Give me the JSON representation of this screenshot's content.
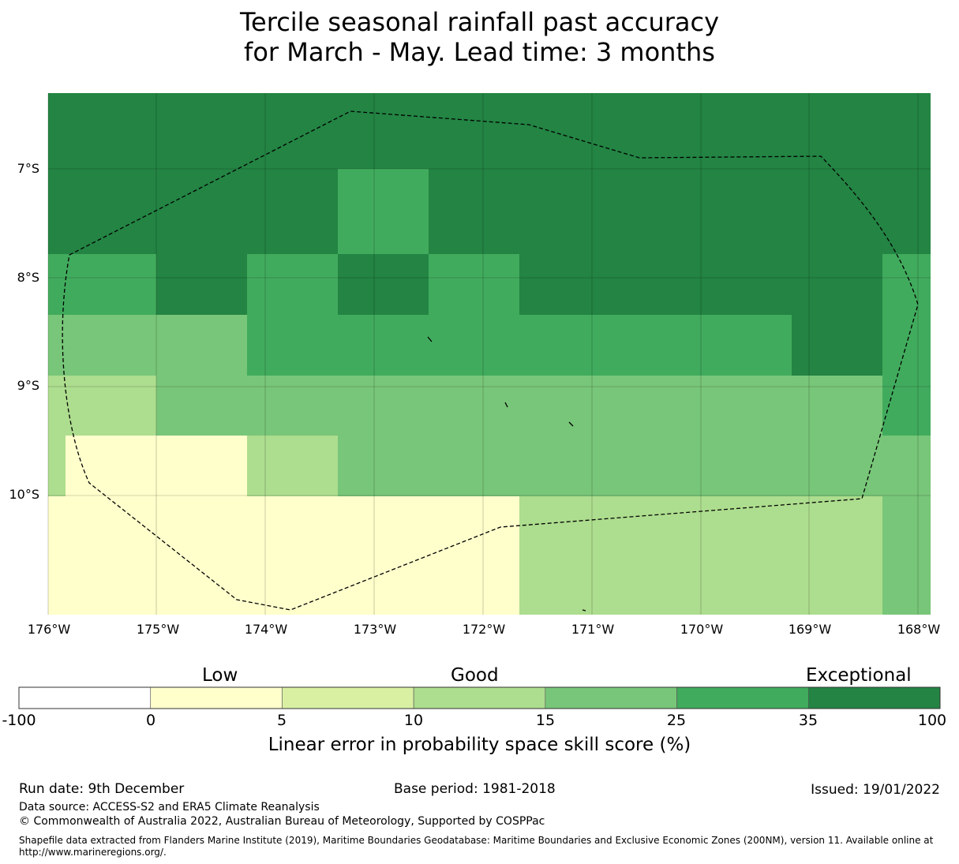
{
  "title": {
    "line1": "Tercile seasonal rainfall past accuracy",
    "line2": "for March - May. Lead time: 3 months"
  },
  "map": {
    "lat_labels": [
      "7°S",
      "8°S",
      "9°S",
      "10°S"
    ],
    "lon_labels": [
      "176°W",
      "175°W",
      "174°W",
      "173°W",
      "172°W",
      "171°W",
      "170°W",
      "169°W",
      "168°W"
    ],
    "grid": {
      "columns": 10,
      "rows": 9,
      "cells": [
        [
          35,
          35,
          35,
          35,
          35,
          35,
          35,
          35,
          35,
          35
        ],
        [
          35,
          35,
          35,
          35,
          35,
          35,
          35,
          35,
          35,
          35
        ],
        [
          35,
          35,
          35,
          25,
          35,
          35,
          35,
          35,
          35,
          35
        ],
        [
          25,
          35,
          25,
          35,
          25,
          35,
          35,
          35,
          35,
          25
        ],
        [
          15,
          15,
          25,
          25,
          25,
          25,
          25,
          25,
          35,
          25
        ],
        [
          10,
          15,
          15,
          15,
          15,
          15,
          15,
          15,
          15,
          25
        ],
        [
          0,
          0,
          10,
          15,
          15,
          15,
          15,
          20,
          15,
          15
        ],
        [
          0,
          0,
          0,
          0,
          0,
          10,
          10,
          10,
          10,
          15
        ],
        [
          0,
          0,
          0,
          0,
          0,
          10,
          10,
          10,
          10,
          15
        ]
      ]
    },
    "boundary_style": "dashed",
    "colors": {
      "below_0": "#ffffff",
      "0_5": "#ffffcc",
      "5_10": "#d9f0a3",
      "10_15": "#addd8e",
      "15_25": "#78c679",
      "25_35": "#41ab5d",
      "35_100": "#238443"
    }
  },
  "colorbar": {
    "category_labels": [
      "Low",
      "Good",
      "Exceptional"
    ],
    "ticks": [
      "-100",
      "0",
      "5",
      "10",
      "15",
      "25",
      "35",
      "100"
    ],
    "colors": [
      "#ffffff",
      "#ffffcc",
      "#d9f0a3",
      "#addd8e",
      "#78c679",
      "#41ab5d",
      "#238443"
    ],
    "title": "Linear error in probability space skill score (%)"
  },
  "footer": {
    "run_date": "Run date: 9th December",
    "base_period": "Base period: 1981-2018",
    "issued": "Issued: 19/01/2022",
    "data_source": "Data source: ACCESS-S2 and ERA5 Climate Reanalysis",
    "copyright": "© Commonwealth of Australia 2022, Australian Bureau of Meteorology, Supported by COSPPac",
    "shapefile": "Shapefile data extracted from Flanders Marine Institute (2019), Maritime Boundaries Geodatabase: Maritime Boundaries and Exclusive Economic Zones (200NM), version 11. Available online at http://www.marineregions.org/."
  }
}
